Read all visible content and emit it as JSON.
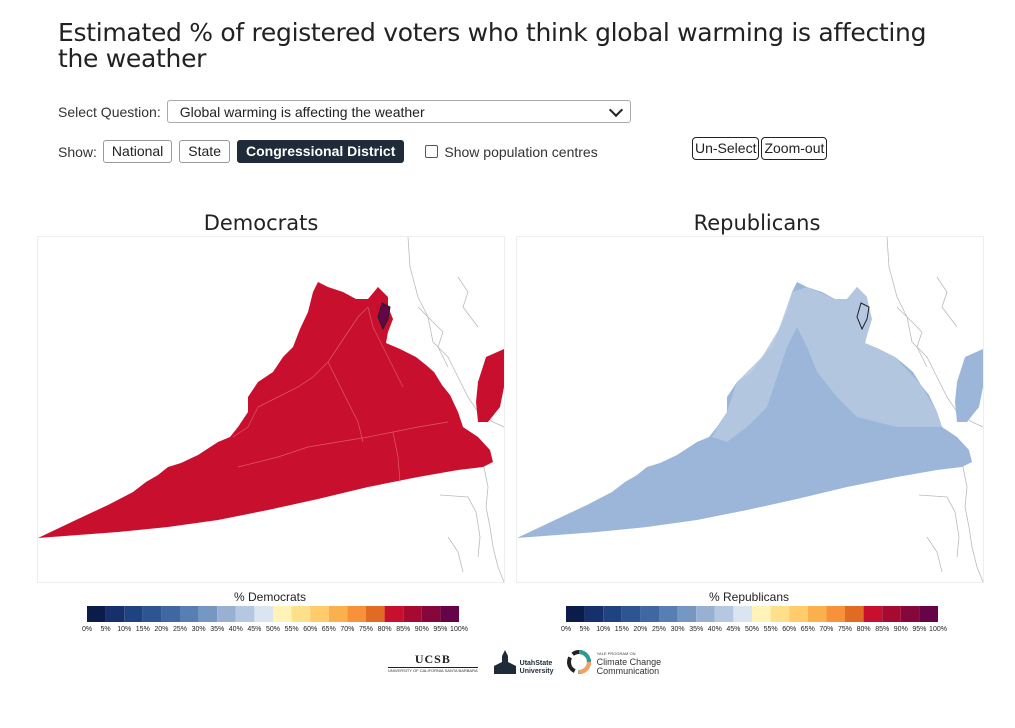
{
  "title": "Estimated % of registered voters who think global warming is affecting the weather",
  "select_label": "Select Question:",
  "select_value": "Global warming is affecting the weather",
  "show_label": "Show:",
  "show_buttons": [
    "National",
    "State",
    "Congressional District"
  ],
  "active_show": "Congressional District",
  "population_label": "Show population centres",
  "unselect_label": "Un-Select",
  "zoomout_label": "Zoom-out",
  "maps": [
    {
      "title": "Democrats",
      "fill_color": "#c8102e",
      "legend_title": "% Democrats"
    },
    {
      "title": "Republicans",
      "fill_color": "#9bb6d8",
      "legend_title": "% Republicans"
    }
  ],
  "legend_colors": [
    "#0c1c4a",
    "#15306a",
    "#1f4381",
    "#2d5592",
    "#3f68a3",
    "#587fb3",
    "#7797c3",
    "#98b1d3",
    "#b6c8e1",
    "#dbe5f1",
    "#fff3b8",
    "#ffe08a",
    "#ffcb6b",
    "#fbb04e",
    "#f7923a",
    "#e06b22",
    "#c8102e",
    "#a50b30",
    "#86073b",
    "#650547"
  ],
  "legend_ticks": [
    "0%",
    "5%",
    "10%",
    "15%",
    "20%",
    "25%",
    "30%",
    "35%",
    "40%",
    "45%",
    "50%",
    "55%",
    "60%",
    "65%",
    "70%",
    "75%",
    "80%",
    "85%",
    "90%",
    "95%",
    "100%"
  ],
  "logos": {
    "ucsb": "UCSB",
    "ucsb_sub": "UNIVERSITY OF CALIFORNIA SANTA BARBARA",
    "usu": "UtahState University",
    "yale_small": "YALE PROGRAM ON",
    "yale_line1": "Climate Change",
    "yale_line2": "Communication"
  }
}
